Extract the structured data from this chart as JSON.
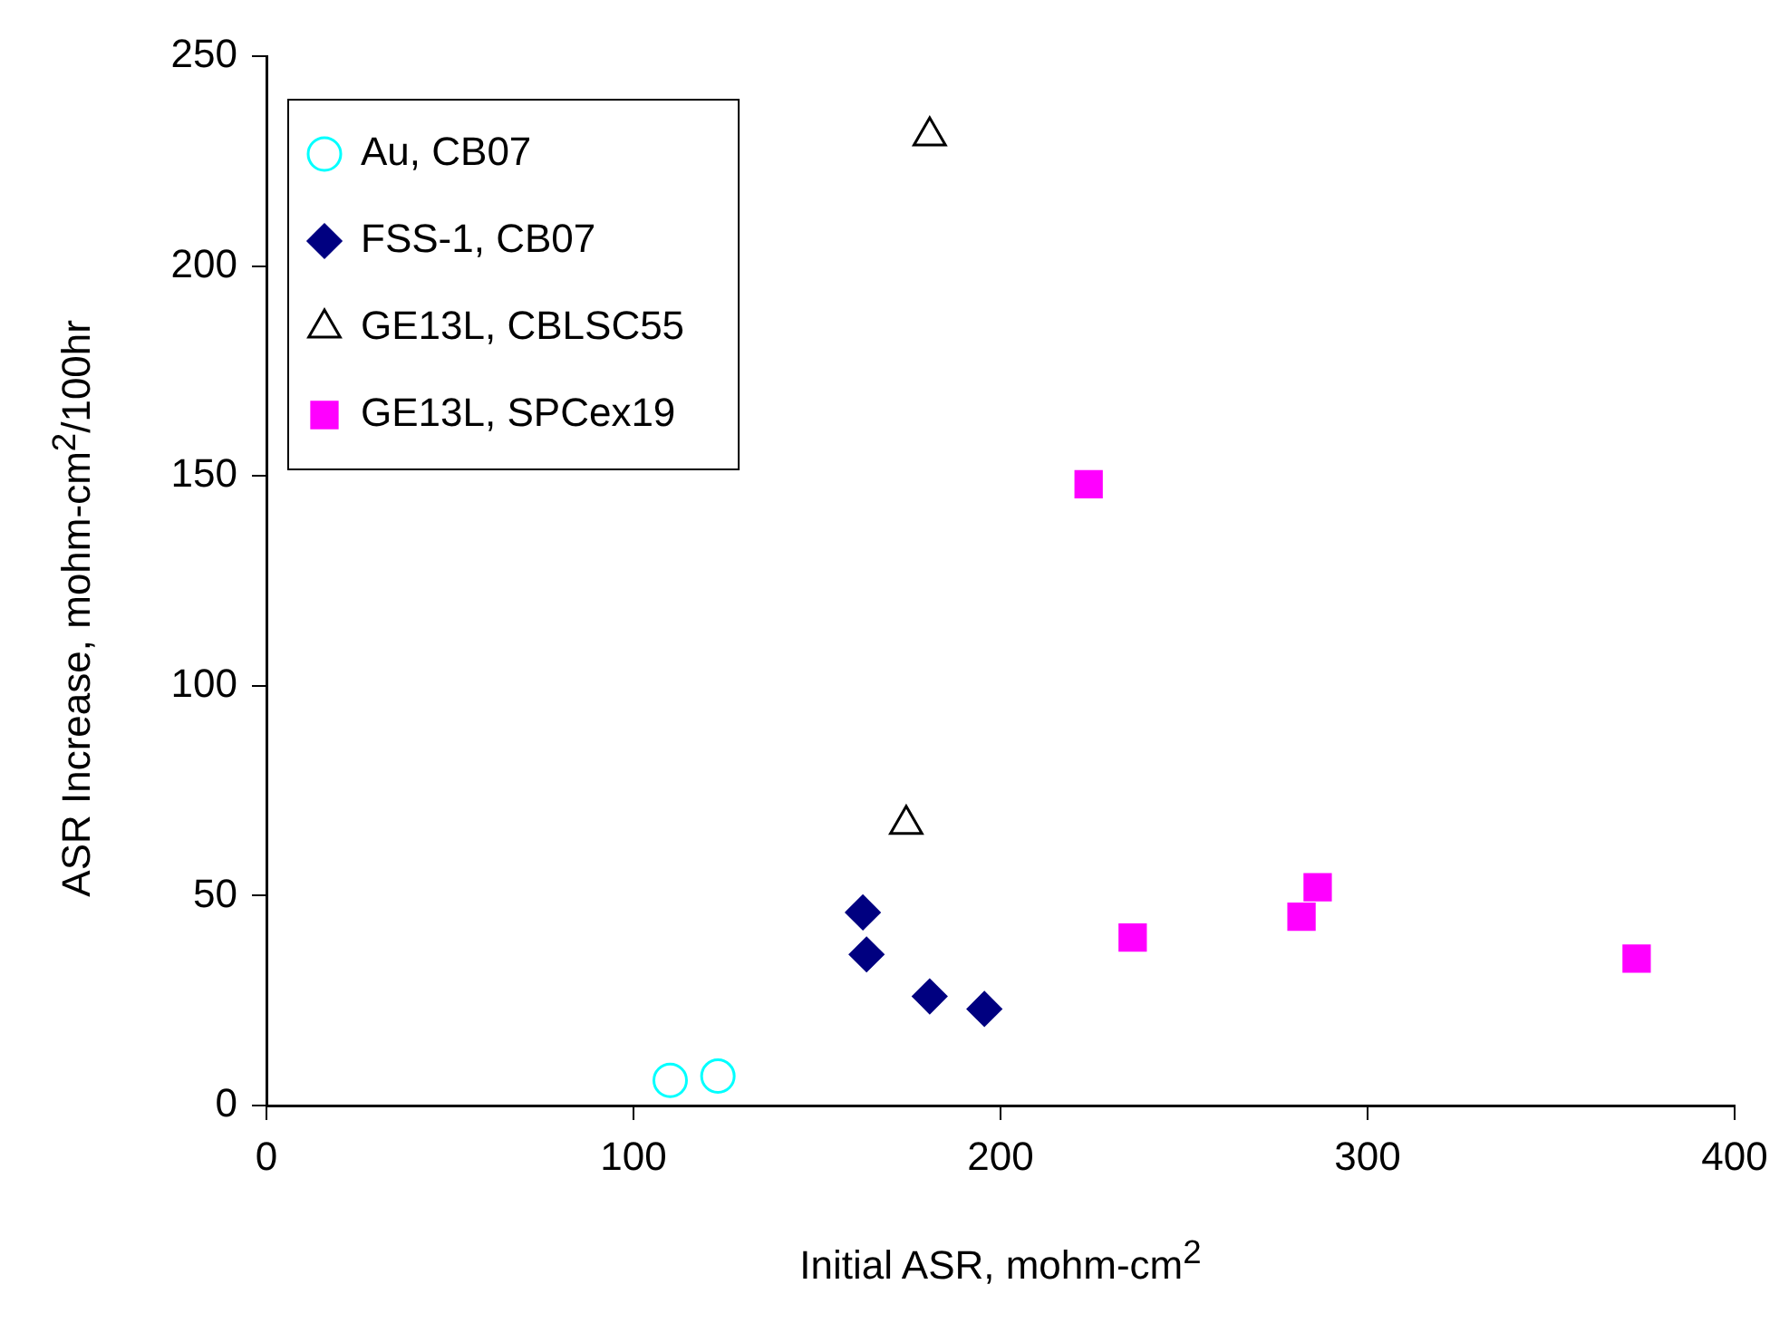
{
  "chart_data": {
    "type": "scatter",
    "xlabel": "Initial ASR, mohm-cm$^{2}$",
    "ylabel": "ASR Increase, mohm-cm$^{2}$/100hr",
    "xlim": [
      0,
      400
    ],
    "xticks": [
      0,
      100,
      200,
      300,
      400
    ],
    "ylim": [
      0,
      250
    ],
    "yticks": [
      0,
      50,
      100,
      150,
      200,
      250
    ],
    "grid": false,
    "legend": "top left",
    "series": [
      {
        "name": "Au, CB07",
        "color": "#00ffff",
        "marker": "circle",
        "x": [
          110,
          123
        ],
        "values": [
          6,
          7
        ]
      },
      {
        "name": "FSS-1, CB07",
        "color": "#000080",
        "marker": "diamond",
        "x": [
          162.5,
          163.5,
          180.7,
          195.6
        ],
        "values": [
          46,
          36,
          26,
          23
        ]
      },
      {
        "name": "GE13L, CBLSC55",
        "color": "#000000",
        "marker": "triangle",
        "x": [
          180.7,
          174.3
        ],
        "values": [
          231,
          67
        ]
      },
      {
        "name": "GE13L, SPCex19",
        "color": "#ff00ff",
        "marker": "square",
        "x": [
          224,
          236,
          282,
          286.4,
          373.3
        ],
        "values": [
          148,
          40,
          45,
          52,
          35
        ]
      }
    ]
  }
}
